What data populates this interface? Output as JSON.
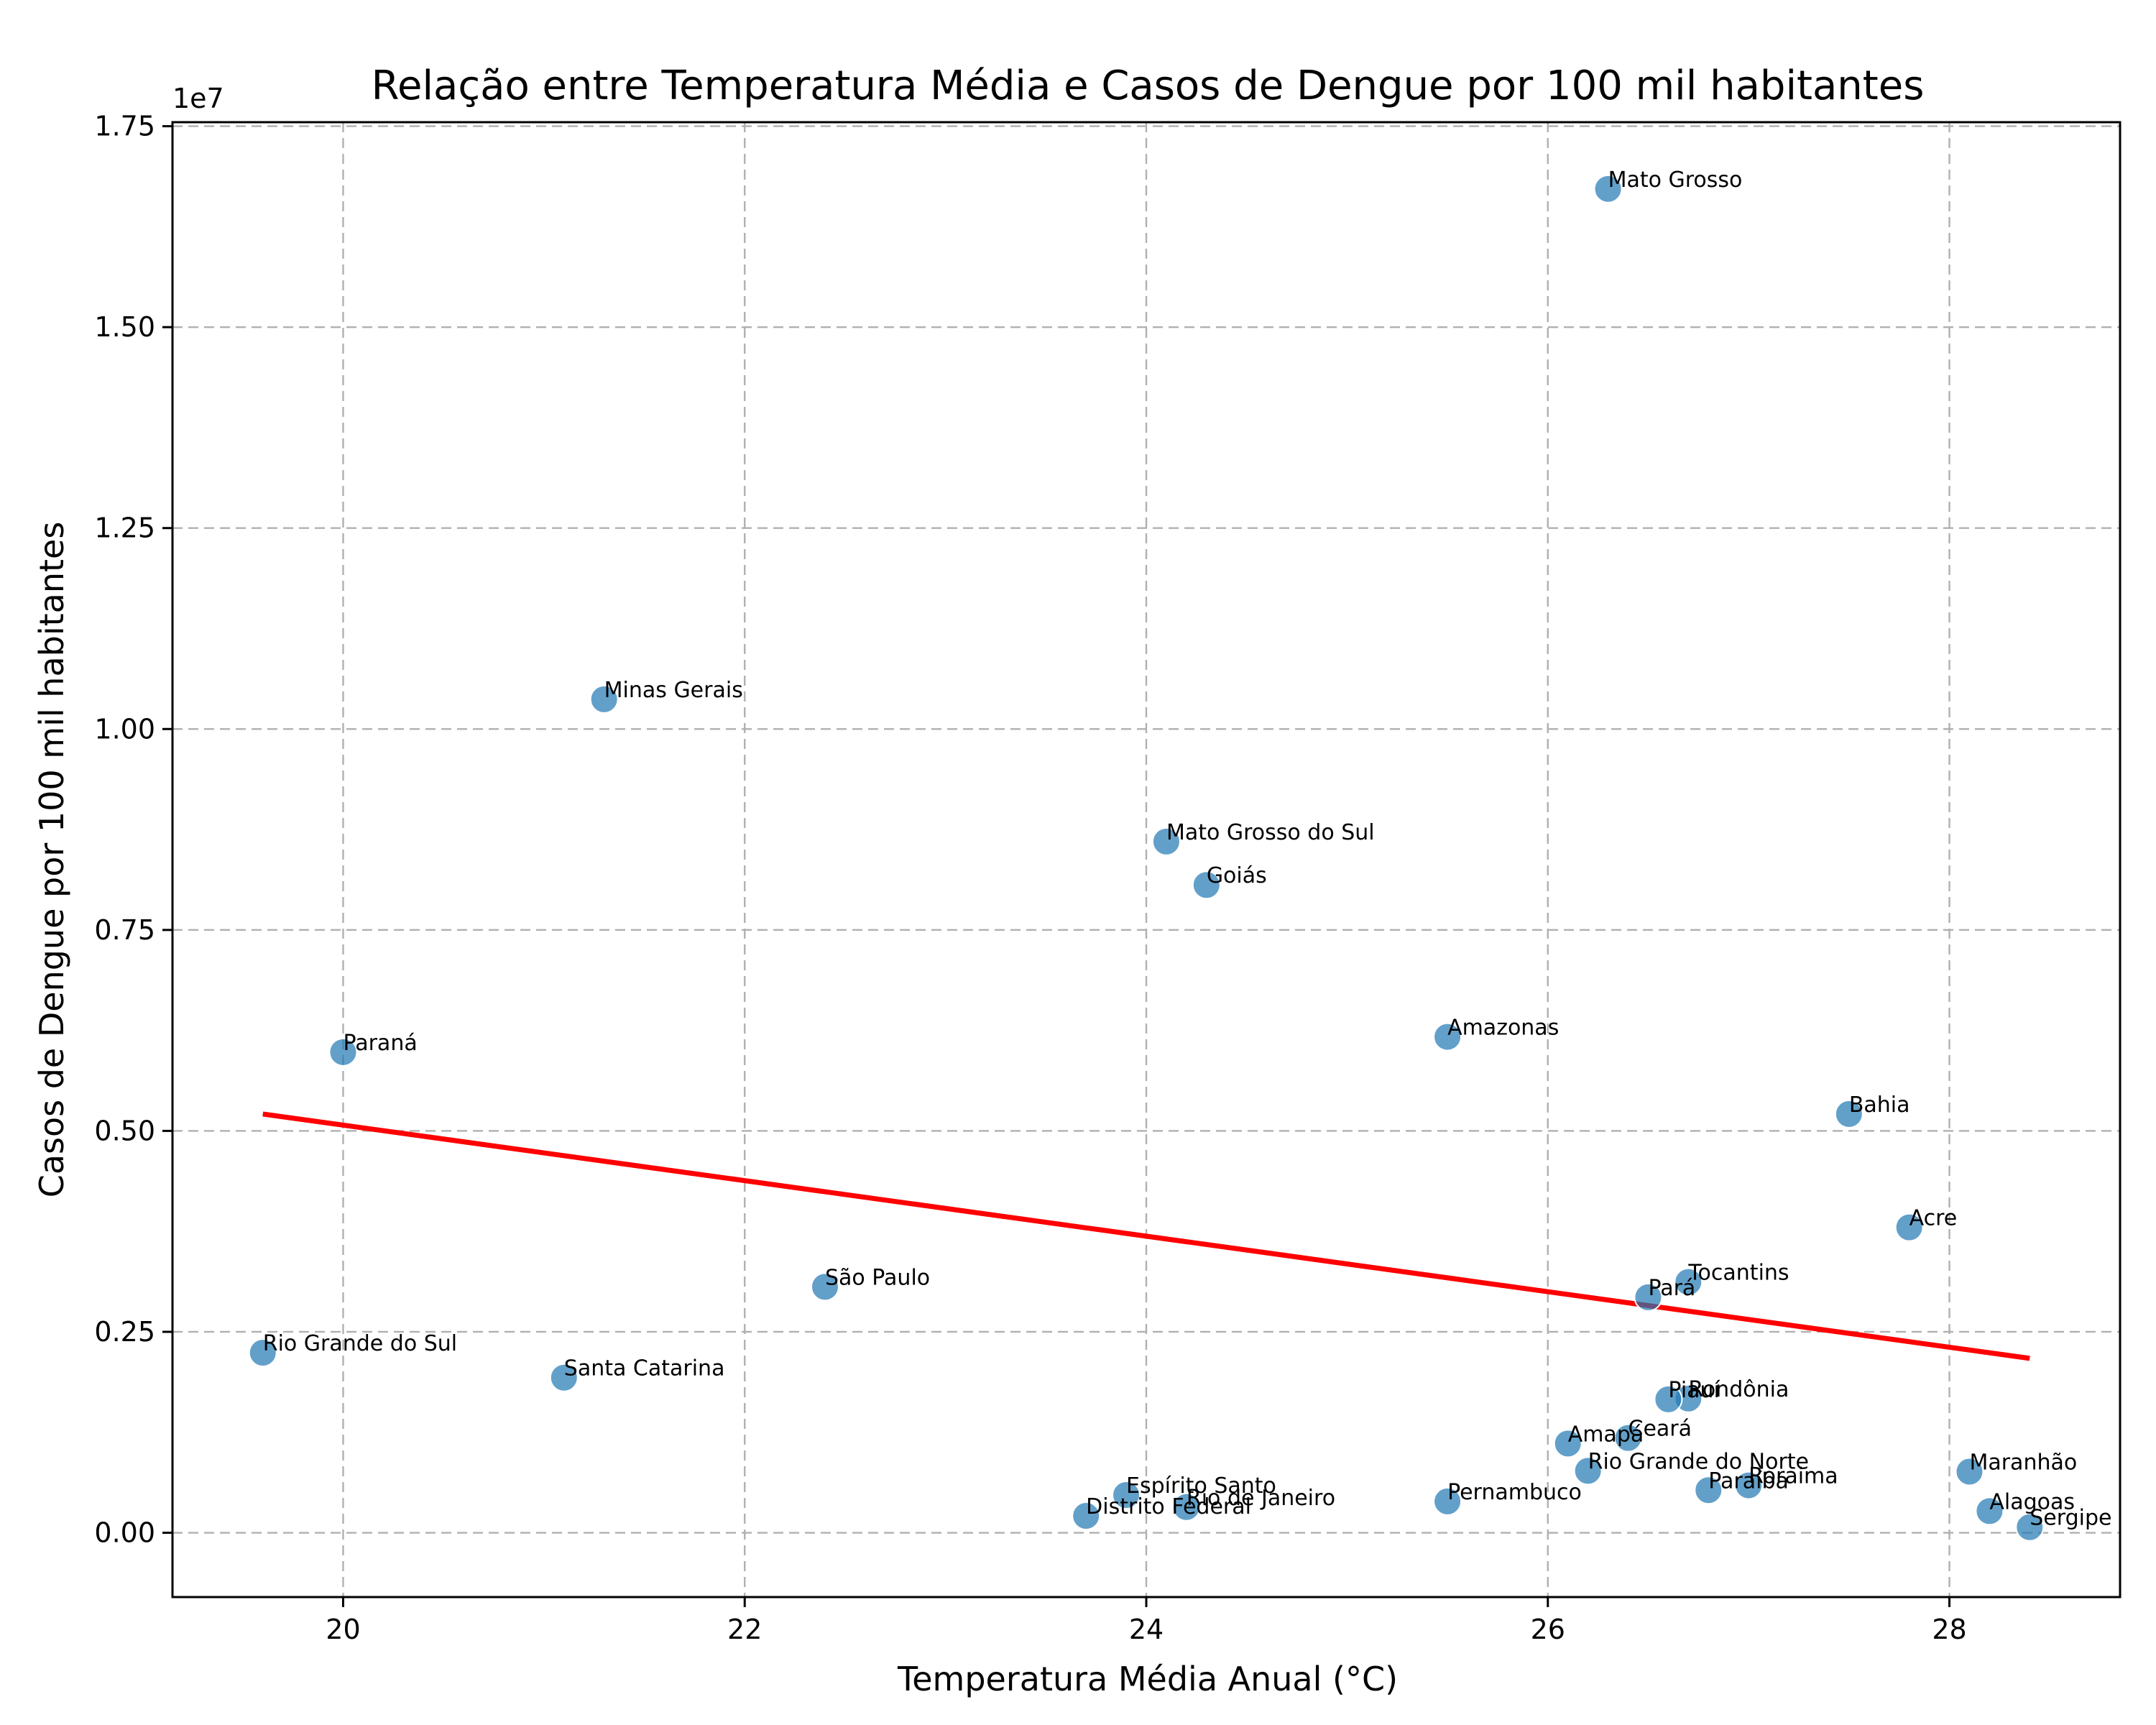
{
  "chart_data": {
    "type": "scatter",
    "title": "Relação entre Temperatura Média e Casos de Dengue por 100 mil habitantes",
    "xlabel": "Temperatura Média Anual (°C)",
    "ylabel": "Casos de Dengue por 100 mil habitantes",
    "y_offset_label": "1e7",
    "xlim": [
      19.15,
      28.85
    ],
    "ylim": [
      -0.08,
      1.755
    ],
    "x_ticks": [
      20,
      22,
      24,
      26,
      28
    ],
    "x_tick_labels": [
      "20",
      "22",
      "24",
      "26",
      "28"
    ],
    "y_ticks": [
      0,
      0.25,
      0.5,
      0.75,
      1.0,
      1.25,
      1.5,
      1.75
    ],
    "y_tick_labels": [
      "0.00",
      "0.25",
      "0.50",
      "0.75",
      "1.00",
      "1.25",
      "1.50",
      "1.75"
    ],
    "grid": true,
    "point_color": "#1f77b4",
    "trend_color": "#ff0000",
    "points": [
      {
        "label": "Mato Grosso",
        "x": 26.3,
        "y": 1.672
      },
      {
        "label": "Minas Gerais",
        "x": 21.3,
        "y": 1.037
      },
      {
        "label": "Mato Grosso do Sul",
        "x": 24.1,
        "y": 0.86
      },
      {
        "label": "Goiás",
        "x": 24.3,
        "y": 0.806
      },
      {
        "label": "Amazonas",
        "x": 25.5,
        "y": 0.617
      },
      {
        "label": "Paraná",
        "x": 20.0,
        "y": 0.598
      },
      {
        "label": "Bahia",
        "x": 27.5,
        "y": 0.521
      },
      {
        "label": "Acre",
        "x": 27.8,
        "y": 0.38
      },
      {
        "label": "Tocantins",
        "x": 26.7,
        "y": 0.312
      },
      {
        "label": "São Paulo",
        "x": 22.4,
        "y": 0.306
      },
      {
        "label": "Pará",
        "x": 26.5,
        "y": 0.293
      },
      {
        "label": "Rio Grande do Sul",
        "x": 19.6,
        "y": 0.224
      },
      {
        "label": "Santa Catarina",
        "x": 21.1,
        "y": 0.193
      },
      {
        "label": "Rondônia",
        "x": 26.7,
        "y": 0.167
      },
      {
        "label": "Piauí",
        "x": 26.6,
        "y": 0.166
      },
      {
        "label": "Ceará",
        "x": 26.4,
        "y": 0.118
      },
      {
        "label": "Amapá",
        "x": 26.1,
        "y": 0.111
      },
      {
        "label": "Rio Grande do Norte",
        "x": 26.2,
        "y": 0.077
      },
      {
        "label": "Maranhão",
        "x": 28.1,
        "y": 0.076
      },
      {
        "label": "Roraima",
        "x": 27.0,
        "y": 0.059
      },
      {
        "label": "Paraíba",
        "x": 26.8,
        "y": 0.053
      },
      {
        "label": "Espírito Santo",
        "x": 23.9,
        "y": 0.047
      },
      {
        "label": "Pernambuco",
        "x": 25.5,
        "y": 0.039
      },
      {
        "label": "Rio de Janeiro",
        "x": 24.2,
        "y": 0.032
      },
      {
        "label": "Alagoas",
        "x": 28.2,
        "y": 0.027
      },
      {
        "label": "Distrito Federal",
        "x": 23.7,
        "y": 0.021
      },
      {
        "label": "Sergipe",
        "x": 28.4,
        "y": 0.007
      }
    ],
    "trendline": {
      "x": [
        19.6,
        28.4
      ],
      "y": [
        0.521,
        0.217
      ]
    }
  }
}
